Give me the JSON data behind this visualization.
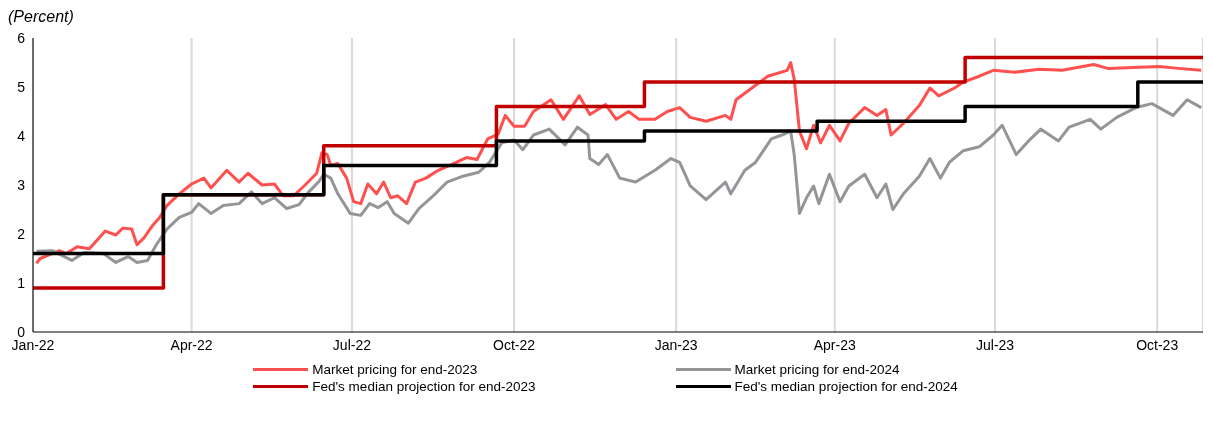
{
  "chart_data": {
    "type": "line",
    "subtitle": "(Percent)",
    "xlim": [
      "2022-01-01",
      "2023-10-27"
    ],
    "xticks": [
      {
        "value": "2022-01-01",
        "label": "Jan-22"
      },
      {
        "value": "2022-04-01",
        "label": "Apr-22"
      },
      {
        "value": "2022-07-01",
        "label": "Jul-22"
      },
      {
        "value": "2022-10-01",
        "label": "Oct-22"
      },
      {
        "value": "2023-01-01",
        "label": "Jan-23"
      },
      {
        "value": "2023-04-01",
        "label": "Apr-23"
      },
      {
        "value": "2023-07-01",
        "label": "Jul-23"
      },
      {
        "value": "2023-10-01",
        "label": "Oct-23"
      }
    ],
    "ylim": [
      0,
      6
    ],
    "yticks": [
      0,
      1,
      2,
      3,
      4,
      5,
      6
    ],
    "grid": "x",
    "legend": "bottom",
    "marker": "none",
    "line_style": "solid",
    "series": [
      {
        "name": "Market pricing for end-2023",
        "color": "#ff5050",
        "type": "line",
        "x": [
          "2022-01-03",
          "2022-01-05",
          "2022-01-16",
          "2022-01-20",
          "2022-01-26",
          "2022-02-02",
          "2022-02-09",
          "2022-02-11",
          "2022-02-17",
          "2022-02-21",
          "2022-02-26",
          "2022-03-01",
          "2022-03-05",
          "2022-03-10",
          "2022-03-14",
          "2022-03-18",
          "2022-03-25",
          "2022-04-01",
          "2022-04-08",
          "2022-04-12",
          "2022-04-21",
          "2022-04-28",
          "2022-05-03",
          "2022-05-11",
          "2022-05-18",
          "2022-05-23",
          "2022-05-29",
          "2022-06-05",
          "2022-06-11",
          "2022-06-14",
          "2022-06-17",
          "2022-06-19",
          "2022-06-23",
          "2022-06-28",
          "2022-07-02",
          "2022-07-06",
          "2022-07-10",
          "2022-07-15",
          "2022-07-19",
          "2022-07-23",
          "2022-07-27",
          "2022-08-01",
          "2022-08-06",
          "2022-08-12",
          "2022-08-19",
          "2022-08-28",
          "2022-09-04",
          "2022-09-10",
          "2022-09-16",
          "2022-09-22",
          "2022-09-26",
          "2022-10-01",
          "2022-10-07",
          "2022-10-12",
          "2022-10-22",
          "2022-10-29",
          "2022-11-07",
          "2022-11-13",
          "2022-11-22",
          "2022-11-28",
          "2022-12-05",
          "2022-12-11",
          "2022-12-20",
          "2022-12-27",
          "2023-01-03",
          "2023-01-09",
          "2023-01-18",
          "2023-01-29",
          "2023-02-01",
          "2023-02-04",
          "2023-02-13",
          "2023-02-22",
          "2023-03-05",
          "2023-03-07",
          "2023-03-09",
          "2023-03-12",
          "2023-03-16",
          "2023-03-20",
          "2023-03-24",
          "2023-03-29",
          "2023-04-04",
          "2023-04-09",
          "2023-04-18",
          "2023-04-25",
          "2023-04-30",
          "2023-05-03",
          "2023-05-10",
          "2023-05-19",
          "2023-05-25",
          "2023-05-30",
          "2023-06-08",
          "2023-06-13",
          "2023-06-22",
          "2023-06-30",
          "2023-07-12",
          "2023-07-26",
          "2023-08-08",
          "2023-08-26",
          "2023-09-03",
          "2023-10-02",
          "2023-10-13",
          "2023-10-26"
        ],
        "values": [
          1.4,
          1.5,
          1.66,
          1.6,
          1.74,
          1.7,
          1.98,
          2.06,
          1.98,
          2.12,
          2.1,
          1.78,
          1.92,
          2.18,
          2.34,
          2.58,
          2.82,
          3.02,
          3.14,
          2.94,
          3.3,
          3.06,
          3.24,
          3.0,
          3.02,
          2.78,
          2.78,
          3.02,
          3.24,
          3.66,
          3.62,
          3.4,
          3.44,
          3.14,
          2.66,
          2.62,
          3.02,
          2.82,
          3.06,
          2.74,
          2.78,
          2.62,
          3.06,
          3.14,
          3.3,
          3.44,
          3.56,
          3.52,
          3.94,
          4.04,
          4.42,
          4.2,
          4.2,
          4.5,
          4.74,
          4.34,
          4.82,
          4.44,
          4.64,
          4.34,
          4.5,
          4.34,
          4.34,
          4.5,
          4.58,
          4.38,
          4.3,
          4.42,
          4.34,
          4.74,
          4.98,
          5.22,
          5.34,
          5.5,
          5.16,
          4.1,
          3.74,
          4.22,
          3.86,
          4.22,
          3.9,
          4.26,
          4.58,
          4.42,
          4.54,
          4.02,
          4.26,
          4.62,
          4.98,
          4.82,
          4.98,
          5.1,
          5.22,
          5.34,
          5.3,
          5.36,
          5.34,
          5.46,
          5.38,
          5.42,
          5.38,
          5.34
        ]
      },
      {
        "name": "Market pricing for end-2024",
        "color": "#939598",
        "type": "line",
        "x": [
          "2022-01-03",
          "2022-01-12",
          "2022-01-23",
          "2022-01-30",
          "2022-02-10",
          "2022-02-17",
          "2022-02-24",
          "2022-03-01",
          "2022-03-07",
          "2022-03-12",
          "2022-03-18",
          "2022-03-25",
          "2022-04-01",
          "2022-04-05",
          "2022-04-12",
          "2022-04-19",
          "2022-04-28",
          "2022-05-05",
          "2022-05-11",
          "2022-05-18",
          "2022-05-25",
          "2022-06-01",
          "2022-06-06",
          "2022-06-12",
          "2022-06-15",
          "2022-06-19",
          "2022-06-23",
          "2022-06-30",
          "2022-07-06",
          "2022-07-11",
          "2022-07-16",
          "2022-07-21",
          "2022-07-25",
          "2022-08-02",
          "2022-08-08",
          "2022-08-15",
          "2022-08-24",
          "2022-09-02",
          "2022-09-11",
          "2022-09-17",
          "2022-09-24",
          "2022-10-01",
          "2022-10-06",
          "2022-10-12",
          "2022-10-21",
          "2022-10-30",
          "2022-11-06",
          "2022-11-12",
          "2022-11-13",
          "2022-11-18",
          "2022-11-23",
          "2022-11-30",
          "2022-12-09",
          "2022-12-20",
          "2022-12-29",
          "2023-01-03",
          "2023-01-09",
          "2023-01-18",
          "2023-01-29",
          "2023-02-01",
          "2023-02-09",
          "2023-02-15",
          "2023-02-24",
          "2023-03-02",
          "2023-03-07",
          "2023-03-09",
          "2023-03-12",
          "2023-03-16",
          "2023-03-20",
          "2023-03-23",
          "2023-03-29",
          "2023-04-04",
          "2023-04-09",
          "2023-04-18",
          "2023-04-25",
          "2023-04-30",
          "2023-05-04",
          "2023-05-10",
          "2023-05-19",
          "2023-05-25",
          "2023-05-31",
          "2023-06-05",
          "2023-06-13",
          "2023-06-22",
          "2023-06-30",
          "2023-07-05",
          "2023-07-13",
          "2023-07-20",
          "2023-07-27",
          "2023-08-06",
          "2023-08-12",
          "2023-08-24",
          "2023-08-30",
          "2023-09-08",
          "2023-09-19",
          "2023-09-28",
          "2023-10-10",
          "2023-10-18",
          "2023-10-26"
        ],
        "values": [
          1.65,
          1.66,
          1.46,
          1.62,
          1.6,
          1.42,
          1.54,
          1.42,
          1.46,
          1.78,
          2.1,
          2.34,
          2.44,
          2.62,
          2.42,
          2.58,
          2.62,
          2.86,
          2.62,
          2.74,
          2.52,
          2.6,
          2.84,
          3.06,
          3.22,
          3.14,
          2.82,
          2.42,
          2.38,
          2.62,
          2.54,
          2.66,
          2.42,
          2.22,
          2.52,
          2.74,
          3.06,
          3.18,
          3.26,
          3.46,
          3.86,
          3.92,
          3.72,
          4.02,
          4.14,
          3.82,
          4.18,
          4.02,
          3.54,
          3.42,
          3.62,
          3.14,
          3.06,
          3.3,
          3.54,
          3.46,
          2.98,
          2.7,
          3.06,
          2.82,
          3.3,
          3.46,
          3.94,
          4.02,
          4.1,
          3.62,
          2.42,
          2.74,
          2.98,
          2.62,
          3.22,
          2.66,
          2.98,
          3.22,
          2.74,
          3.02,
          2.5,
          2.82,
          3.18,
          3.54,
          3.14,
          3.46,
          3.7,
          3.78,
          4.02,
          4.22,
          3.62,
          3.9,
          4.14,
          3.9,
          4.18,
          4.34,
          4.14,
          4.38,
          4.58,
          4.66,
          4.42,
          4.74,
          4.58
        ]
      },
      {
        "name": "Fed's median projection for end-2023",
        "color": "#c00000",
        "type": "step",
        "x": [
          "2022-01-01",
          "2022-03-16",
          "2022-06-15",
          "2022-09-21",
          "2022-12-14",
          "2023-06-14",
          "2023-10-27"
        ],
        "values": [
          0.9,
          2.8,
          3.8,
          4.6,
          5.1,
          5.6,
          5.6
        ]
      },
      {
        "name": "Fed's median projection for end-2024",
        "color": "#000000",
        "type": "step",
        "x": [
          "2022-01-01",
          "2022-03-16",
          "2022-06-15",
          "2022-09-21",
          "2022-12-14",
          "2023-03-22",
          "2023-06-14",
          "2023-09-20",
          "2023-10-27"
        ],
        "values": [
          1.6,
          2.8,
          3.4,
          3.9,
          4.1,
          4.3,
          4.6,
          5.1,
          5.1
        ]
      }
    ]
  }
}
